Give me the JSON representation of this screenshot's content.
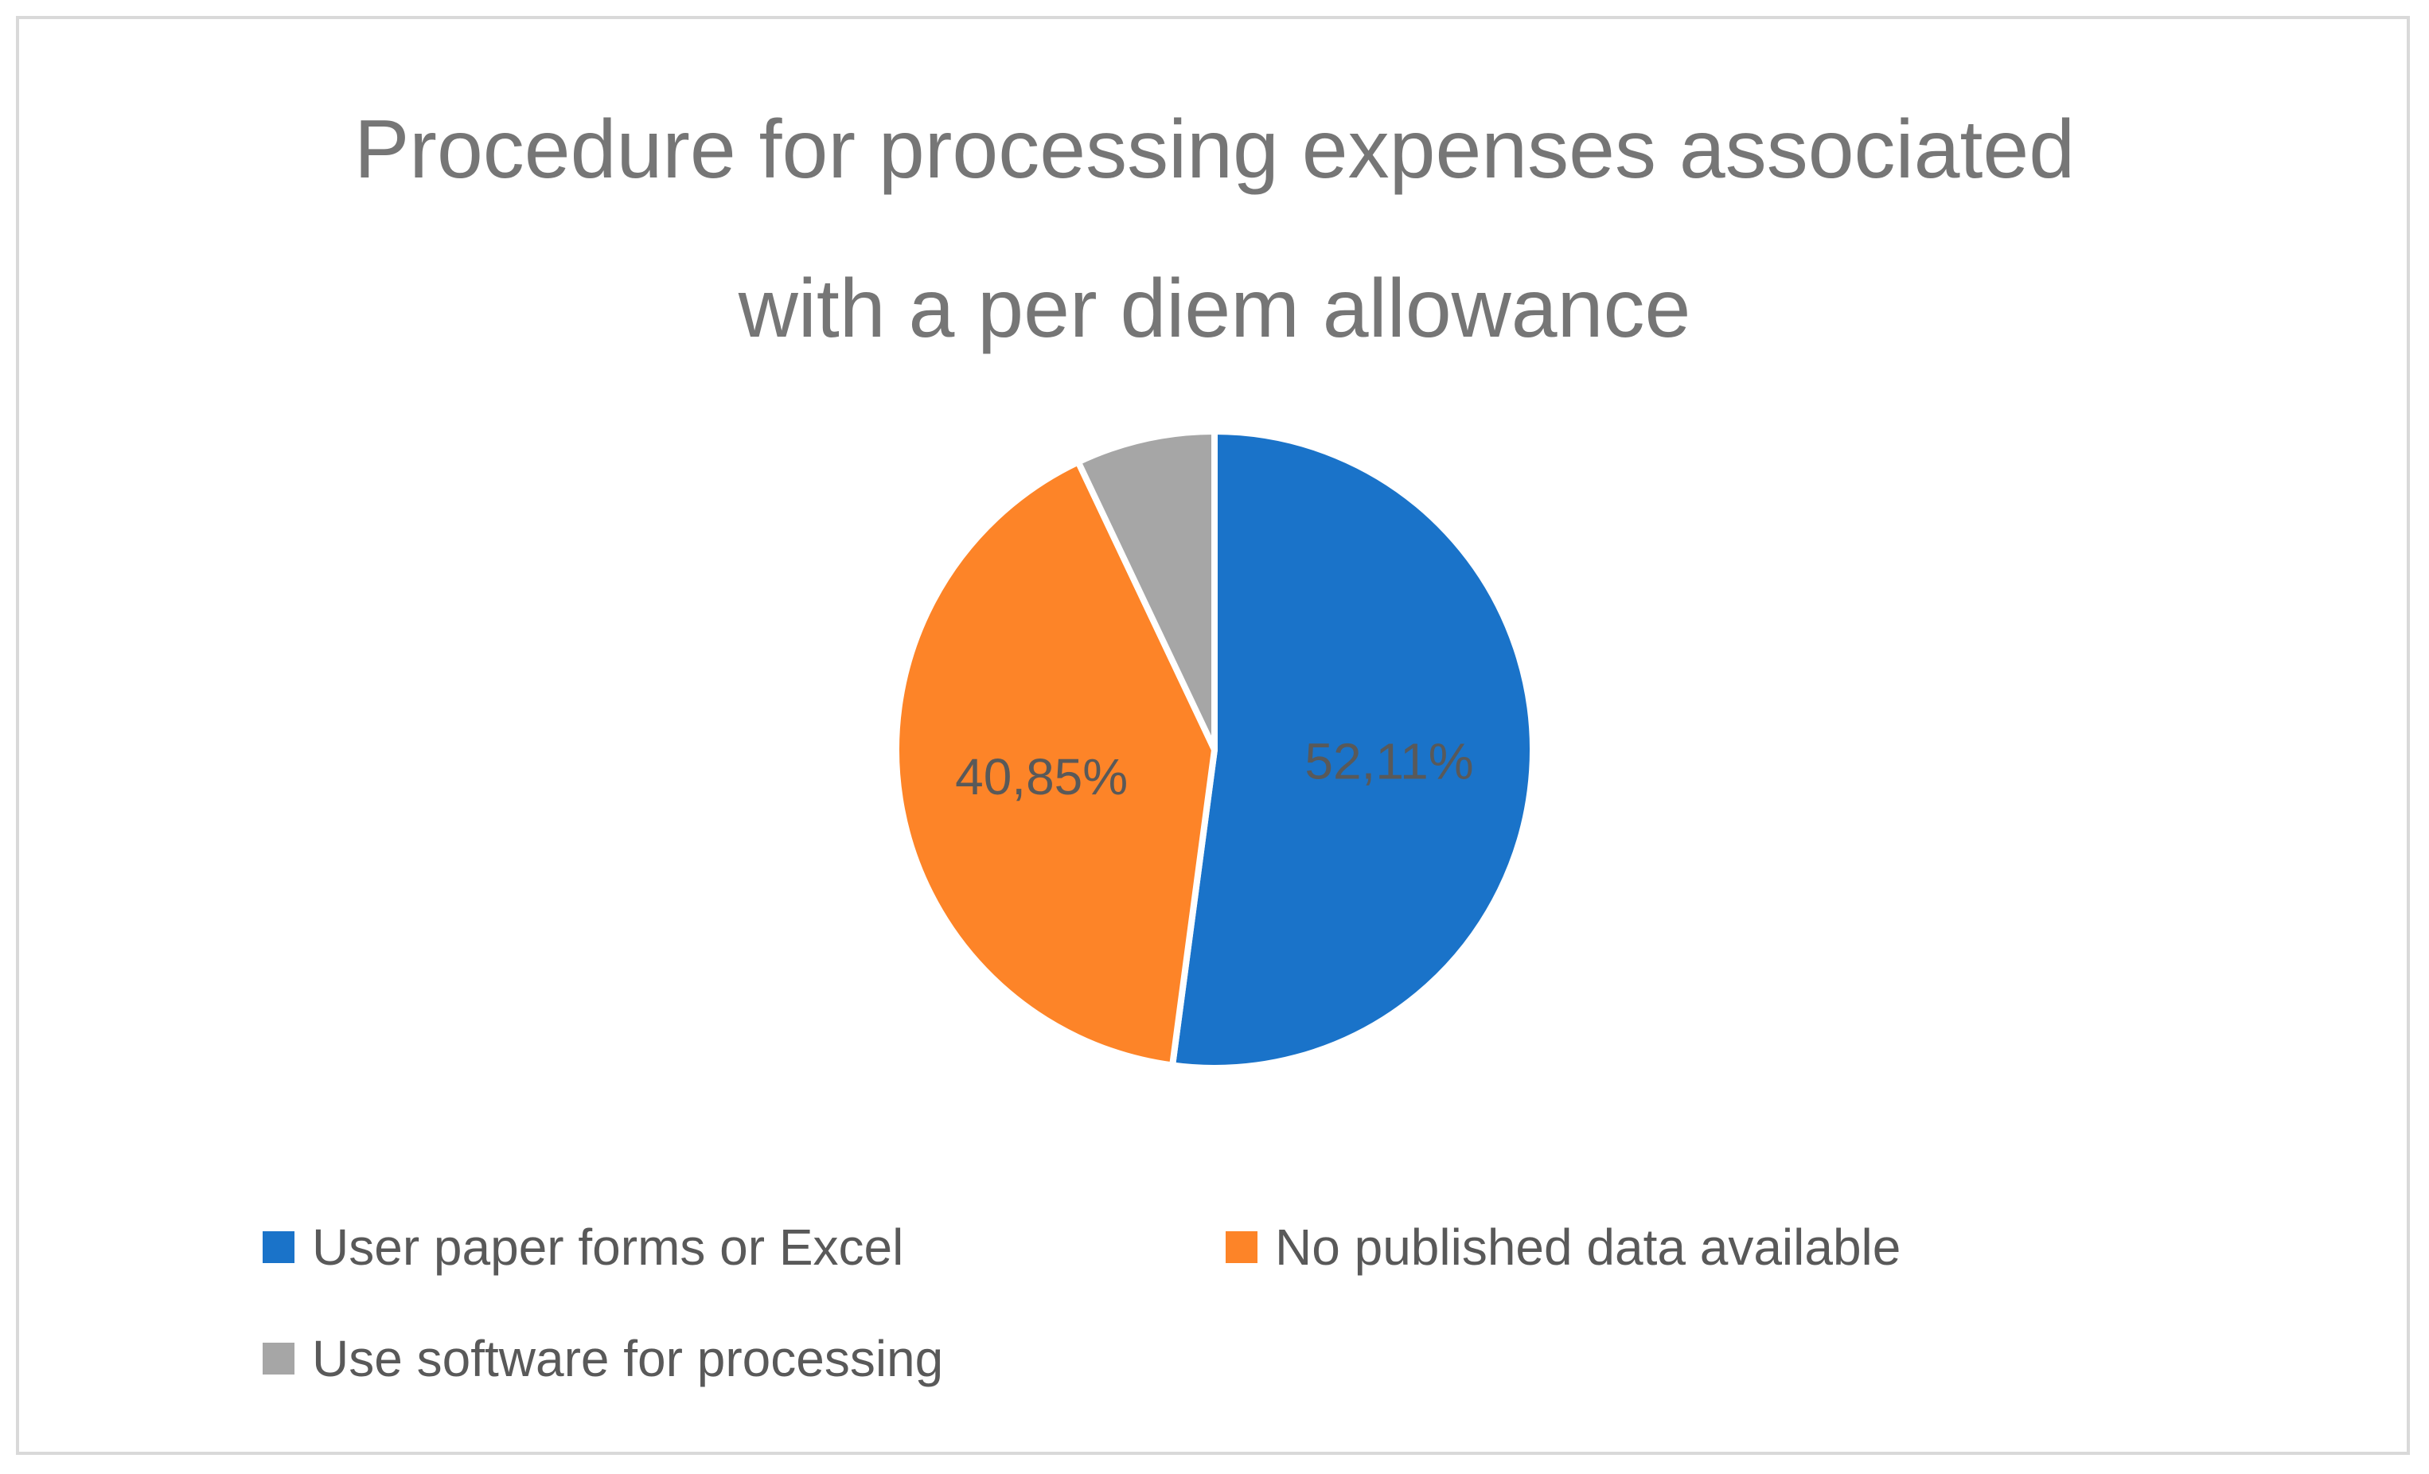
{
  "chart_data": {
    "type": "pie",
    "title_lines": [
      "Procedure for processing expenses associated",
      "with a per diem allowance"
    ],
    "slices": [
      {
        "name": "User paper forms or Excel",
        "value": 52.11,
        "label": "52,11%",
        "color": "#1a73c9"
      },
      {
        "name": "No published data available",
        "value": 40.85,
        "label": "40,85%",
        "color": "#fd8428"
      },
      {
        "name": "Use software for processing",
        "value": 7.04,
        "label": "",
        "color": "#a6a6a6"
      }
    ],
    "legend_placement": "bottom"
  }
}
